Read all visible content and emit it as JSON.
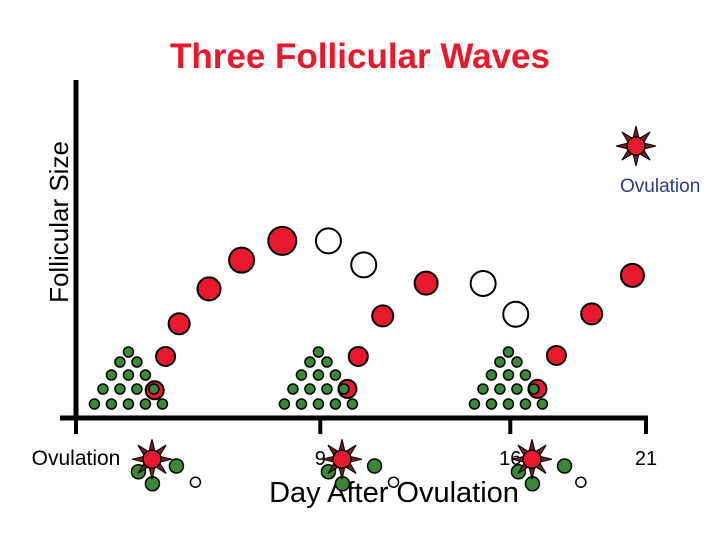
{
  "chart_data": {
    "type": "scatter",
    "title": "Three Follicular Waves",
    "xlabel": "Day After Ovulation",
    "ylabel": "Follicular Size",
    "x_ticks": [
      {
        "x": 0,
        "label": "Ovulation"
      },
      {
        "x": 9,
        "label": "9"
      },
      {
        "x": 16,
        "label": "16"
      },
      {
        "x": 21,
        "label": "21"
      }
    ],
    "xlim": [
      0,
      21
    ],
    "ylim": [
      0,
      10
    ],
    "annotations": [
      {
        "text": "Ovulation",
        "color": "#2e3a8c"
      }
    ],
    "colors": {
      "dominant": "#e8192c",
      "subordinate": "#3a8a35",
      "regressing": "#ffffff",
      "starburst": "#7a1f1f",
      "axis": "#000000"
    },
    "series": [
      {
        "wave": 1,
        "dominant": [
          {
            "x": 2.9,
            "y": 0.82
          },
          {
            "x": 3.3,
            "y": 1.82
          },
          {
            "x": 3.8,
            "y": 2.79
          },
          {
            "x": 4.9,
            "y": 3.82
          },
          {
            "x": 6.1,
            "y": 4.67
          },
          {
            "x": 7.6,
            "y": 5.24
          }
        ],
        "regressing": [
          {
            "x": 9.3,
            "y": 5.24
          },
          {
            "x": 10.6,
            "y": 4.53
          }
        ],
        "subordinate_tips": [
          {
            "x": 2.3,
            "y": -1.59
          },
          {
            "x": 3.7,
            "y": -1.42
          },
          {
            "x": 4.4,
            "y": -1.9
          }
        ],
        "starburst": {
          "x": 2.8,
          "y": -1.22
        }
      },
      {
        "wave": 2,
        "dominant": [
          {
            "x": 10.0,
            "y": 0.86
          },
          {
            "x": 10.4,
            "y": 1.82
          },
          {
            "x": 11.3,
            "y": 3.02
          },
          {
            "x": 12.9,
            "y": 3.99
          }
        ],
        "regressing": [
          {
            "x": 15.0,
            "y": 3.98
          },
          {
            "x": 16.2,
            "y": 3.07
          }
        ],
        "subordinate_tips": [
          {
            "x": 9.3,
            "y": -1.59
          },
          {
            "x": 11.0,
            "y": -1.42
          },
          {
            "x": 11.7,
            "y": -1.9
          }
        ],
        "starburst": {
          "x": 9.8,
          "y": -1.22
        }
      },
      {
        "wave": 3,
        "dominant": [
          {
            "x": 17.0,
            "y": 0.86
          },
          {
            "x": 17.7,
            "y": 1.85
          },
          {
            "x": 19.0,
            "y": 3.08
          },
          {
            "x": 20.5,
            "y": 4.22
          }
        ],
        "regressing": [],
        "subordinate_tips": [
          {
            "x": 16.3,
            "y": -1.59
          },
          {
            "x": 18.0,
            "y": -1.42
          },
          {
            "x": 18.6,
            "y": -1.9
          }
        ],
        "starburst": {
          "x": 16.8,
          "y": -1.22
        }
      }
    ]
  }
}
